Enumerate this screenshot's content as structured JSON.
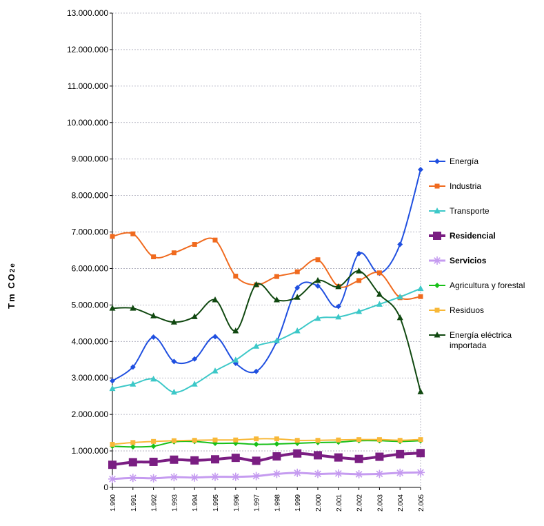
{
  "chart_data": {
    "type": "line",
    "title": "",
    "xlabel": "",
    "ylabel": "Tm CO",
    "ylabel_sub": "2e",
    "ylim": [
      0,
      13000000
    ],
    "yticks": [
      0,
      1000000,
      2000000,
      3000000,
      4000000,
      5000000,
      6000000,
      7000000,
      8000000,
      9000000,
      10000000,
      11000000,
      12000000,
      13000000
    ],
    "ytick_labels": [
      "0",
      "1.000.000",
      "2.000.000",
      "3.000.000",
      "4.000.000",
      "5.000.000",
      "6.000.000",
      "7.000.000",
      "8.000.000",
      "9.000.000",
      "10.000.000",
      "11.000.000",
      "12.000.000",
      "13.000.000"
    ],
    "categories": [
      "1.990",
      "1.991",
      "1.992",
      "1.993",
      "1.994",
      "1.995",
      "1.996",
      "1.997",
      "1.998",
      "1.999",
      "2.000",
      "2.001",
      "2.002",
      "2.003",
      "2.004",
      "2.005"
    ],
    "grid": "horizontal dashed",
    "legend_position": "right",
    "series": [
      {
        "name": "Energía",
        "color": "#1f4fe0",
        "marker": "diamond",
        "bold": false,
        "values": [
          2920000,
          3300000,
          4120000,
          3450000,
          3520000,
          4130000,
          3400000,
          3180000,
          4000000,
          5470000,
          5520000,
          4960000,
          6410000,
          5870000,
          6660000,
          8710000
        ]
      },
      {
        "name": "Industria",
        "color": "#f06a1e",
        "marker": "square",
        "bold": false,
        "values": [
          6880000,
          6950000,
          6320000,
          6430000,
          6660000,
          6780000,
          5790000,
          5550000,
          5780000,
          5910000,
          6240000,
          5510000,
          5670000,
          5880000,
          5200000,
          5230000
        ]
      },
      {
        "name": "Transporte",
        "color": "#3cc8c8",
        "marker": "triangle",
        "bold": false,
        "values": [
          2710000,
          2830000,
          2970000,
          2610000,
          2830000,
          3190000,
          3490000,
          3870000,
          4020000,
          4290000,
          4630000,
          4670000,
          4820000,
          5020000,
          5220000,
          5450000
        ]
      },
      {
        "name": "Residencial",
        "color": "#7a1e82",
        "marker": "square-big",
        "bold": true,
        "values": [
          620000,
          690000,
          700000,
          760000,
          740000,
          770000,
          810000,
          730000,
          850000,
          930000,
          880000,
          820000,
          780000,
          840000,
          910000,
          940000
        ]
      },
      {
        "name": "Servicios",
        "color": "#c59bf0",
        "marker": "asterisk",
        "bold": true,
        "values": [
          230000,
          260000,
          250000,
          280000,
          270000,
          290000,
          290000,
          310000,
          370000,
          400000,
          370000,
          380000,
          360000,
          370000,
          400000,
          410000
        ]
      },
      {
        "name": "Agricultura y forestal",
        "color": "#18c018",
        "marker": "diamond",
        "bold": false,
        "values": [
          1130000,
          1110000,
          1130000,
          1250000,
          1260000,
          1210000,
          1210000,
          1180000,
          1190000,
          1210000,
          1230000,
          1240000,
          1280000,
          1280000,
          1260000,
          1280000
        ]
      },
      {
        "name": "Residuos",
        "color": "#f8b838",
        "marker": "square",
        "bold": false,
        "values": [
          1180000,
          1230000,
          1260000,
          1280000,
          1290000,
          1300000,
          1300000,
          1330000,
          1330000,
          1290000,
          1290000,
          1300000,
          1310000,
          1310000,
          1290000,
          1310000
        ]
      },
      {
        "name": "Energía eléctrica importada",
        "name_lines": [
          "Energía eléctrica",
          "importada"
        ],
        "color": "#104810",
        "marker": "triangle",
        "bold": false,
        "values": [
          4910000,
          4910000,
          4700000,
          4530000,
          4680000,
          5140000,
          4290000,
          5560000,
          5140000,
          5210000,
          5670000,
          5500000,
          5930000,
          5290000,
          4650000,
          2620000
        ]
      }
    ]
  }
}
